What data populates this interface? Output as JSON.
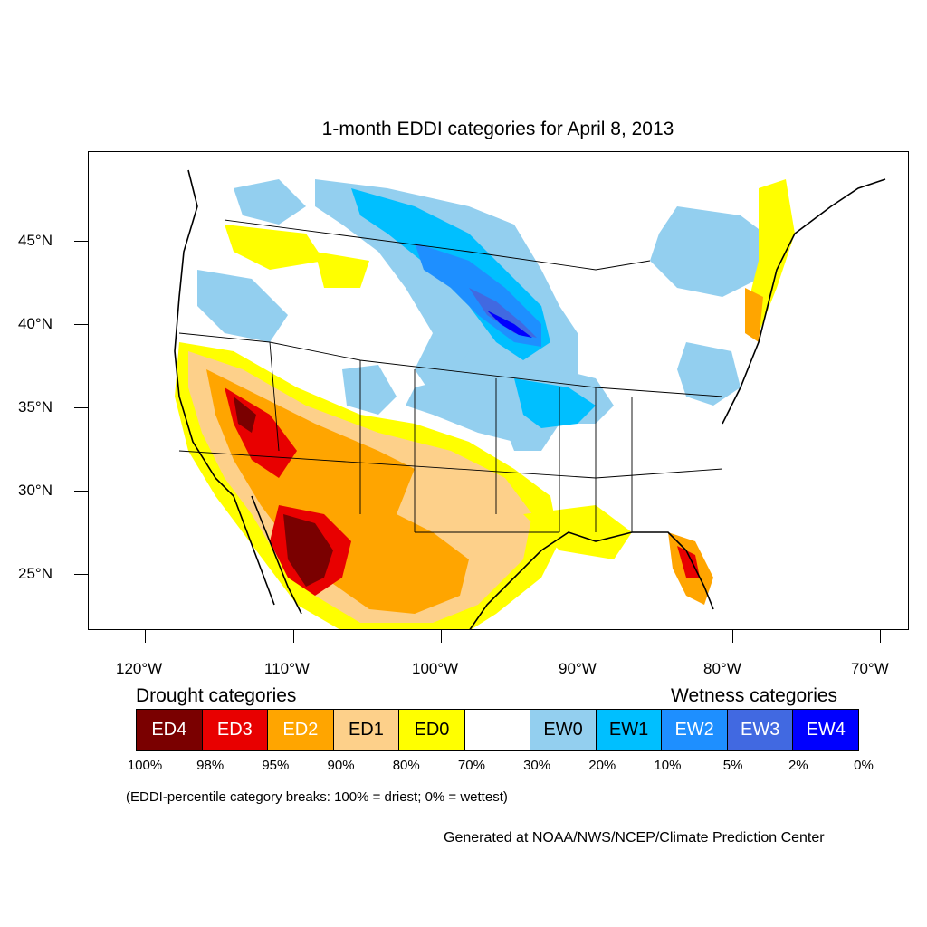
{
  "title": "1-month EDDI categories for April 8, 2013",
  "lat_labels": [
    "45°N",
    "40°N",
    "35°N",
    "30°N",
    "25°N"
  ],
  "lon_labels": [
    "120°W",
    "110°W",
    "100°W",
    "90°W",
    "80°W",
    "70°W"
  ],
  "legend": {
    "drought_heading": "Drought categories",
    "wetness_heading": "Wetness categories",
    "categories": [
      {
        "label": "ED4",
        "color": "#7a0000",
        "text_color": "#ffffff"
      },
      {
        "label": "ED3",
        "color": "#e80000",
        "text_color": "#ffffff"
      },
      {
        "label": "ED2",
        "color": "#ffa500",
        "text_color": "#ffffff"
      },
      {
        "label": "ED1",
        "color": "#fdd08a",
        "text_color": "#000000"
      },
      {
        "label": "ED0",
        "color": "#ffff00",
        "text_color": "#000000"
      },
      {
        "label": "",
        "color": "#ffffff",
        "text_color": "#000000"
      },
      {
        "label": "EW0",
        "color": "#93cfef",
        "text_color": "#000000"
      },
      {
        "label": "EW1",
        "color": "#00bfff",
        "text_color": "#000000"
      },
      {
        "label": "EW2",
        "color": "#1e8fff",
        "text_color": "#ffffff"
      },
      {
        "label": "EW3",
        "color": "#4169e1",
        "text_color": "#ffffff"
      },
      {
        "label": "EW4",
        "color": "#0000ff",
        "text_color": "#ffffff"
      }
    ],
    "breaks": [
      "100%",
      "98%",
      "95%",
      "90%",
      "80%",
      "70%",
      "30%",
      "20%",
      "10%",
      "5%",
      "2%",
      "0%"
    ]
  },
  "note": "(EDDI-percentile category breaks: 100% = driest; 0% = wettest)",
  "credit": "Generated at NOAA/NWS/NCEP/Climate Prediction Center"
}
